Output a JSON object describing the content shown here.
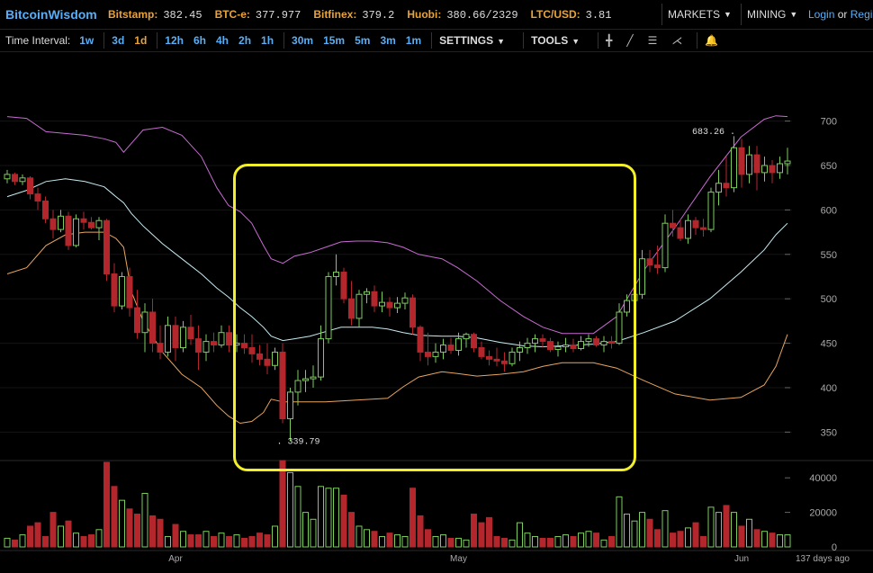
{
  "brand": "BitcoinWisdom",
  "tickers": [
    {
      "exchange": "Bitstamp:",
      "value": "382.45"
    },
    {
      "exchange": "BTC-e:",
      "value": "377.977"
    },
    {
      "exchange": "Bitfinex:",
      "value": "379.2"
    },
    {
      "exchange": "Huobi:",
      "value": "380.66/2329"
    },
    {
      "exchange": "LTC/USD:",
      "value": "3.81"
    }
  ],
  "menus": {
    "markets": "MARKETS",
    "mining": "MINING"
  },
  "login": {
    "login_label": "Login",
    "or": "or",
    "register_label": "Regi"
  },
  "toolbar": {
    "time_interval_label": "Time Interval:",
    "intervals": [
      "1w",
      "3d",
      "1d",
      "12h",
      "6h",
      "4h",
      "2h",
      "1h",
      "30m",
      "15m",
      "5m",
      "3m",
      "1m"
    ],
    "active_interval": "1d",
    "settings_label": "SETTINGS",
    "tools_label": "TOOLS"
  },
  "colors": {
    "up": "#7dcc5e",
    "down": "#b3262b",
    "bb_upper": "#c66bd0",
    "bb_mid": "#c7ecf3",
    "bb_lower": "#e8a560",
    "highlight": "#f2ef2a",
    "axis_text": "#aaaaaa"
  },
  "chart_data": {
    "type": "candlestick",
    "price_axis": {
      "ticks": [
        350,
        400,
        450,
        500,
        550,
        600,
        650,
        700
      ],
      "ylim": [
        320,
        735
      ]
    },
    "volume_axis": {
      "ticks": [
        0,
        20000,
        40000
      ],
      "ylim": [
        0,
        50000
      ]
    },
    "x_labels": [
      {
        "label": "Apr",
        "index": 22
      },
      {
        "label": "May",
        "index": 59
      },
      {
        "label": "Jun",
        "index": 96
      }
    ],
    "days_label": "137 days ago",
    "high_annotation": {
      "label": "683.26",
      "index": 96,
      "value": 683.26
    },
    "low_annotation": {
      "label": "339.79",
      "index": 35,
      "value": 339.79
    },
    "candles": [
      [
        635,
        645,
        630,
        640
      ],
      [
        640,
        642,
        628,
        632
      ],
      [
        632,
        640,
        628,
        636
      ],
      [
        636,
        638,
        612,
        618
      ],
      [
        618,
        625,
        600,
        610
      ],
      [
        610,
        615,
        585,
        590
      ],
      [
        590,
        600,
        568,
        578
      ],
      [
        578,
        600,
        575,
        593
      ],
      [
        593,
        598,
        555,
        560
      ],
      [
        560,
        595,
        558,
        590
      ],
      [
        590,
        598,
        578,
        586
      ],
      [
        586,
        592,
        578,
        580
      ],
      [
        580,
        592,
        566,
        588
      ],
      [
        588,
        590,
        520,
        528
      ],
      [
        528,
        540,
        485,
        492
      ],
      [
        492,
        530,
        488,
        525
      ],
      [
        525,
        535,
        480,
        490
      ],
      [
        490,
        510,
        455,
        462
      ],
      [
        462,
        495,
        440,
        485
      ],
      [
        485,
        500,
        440,
        450
      ],
      [
        450,
        470,
        432,
        440
      ],
      [
        440,
        480,
        435,
        470
      ],
      [
        470,
        480,
        430,
        445
      ],
      [
        445,
        475,
        440,
        468
      ],
      [
        468,
        482,
        448,
        455
      ],
      [
        455,
        470,
        420,
        440
      ],
      [
        440,
        460,
        430,
        452
      ],
      [
        452,
        462,
        440,
        448
      ],
      [
        448,
        470,
        445,
        462
      ],
      [
        462,
        470,
        440,
        448
      ],
      [
        448,
        460,
        440,
        450
      ],
      [
        450,
        460,
        438,
        445
      ],
      [
        445,
        460,
        428,
        438
      ],
      [
        438,
        448,
        425,
        432
      ],
      [
        432,
        450,
        415,
        425
      ],
      [
        425,
        445,
        420,
        440
      ],
      [
        440,
        450,
        360,
        365
      ],
      [
        365,
        400,
        340,
        395
      ],
      [
        395,
        420,
        380,
        408
      ],
      [
        408,
        420,
        395,
        410
      ],
      [
        410,
        425,
        400,
        412
      ],
      [
        412,
        470,
        408,
        455
      ],
      [
        455,
        530,
        450,
        525
      ],
      [
        525,
        550,
        515,
        530
      ],
      [
        530,
        535,
        495,
        500
      ],
      [
        500,
        520,
        470,
        478
      ],
      [
        478,
        510,
        468,
        505
      ],
      [
        505,
        512,
        495,
        508
      ],
      [
        508,
        515,
        485,
        492
      ],
      [
        492,
        508,
        485,
        496
      ],
      [
        496,
        502,
        480,
        490
      ],
      [
        490,
        502,
        484,
        495
      ],
      [
        495,
        507,
        488,
        501
      ],
      [
        501,
        505,
        460,
        468
      ],
      [
        468,
        470,
        430,
        440
      ],
      [
        440,
        462,
        425,
        435
      ],
      [
        435,
        450,
        428,
        440
      ],
      [
        440,
        455,
        432,
        448
      ],
      [
        448,
        456,
        438,
        442
      ],
      [
        442,
        462,
        436,
        455
      ],
      [
        455,
        462,
        445,
        460
      ],
      [
        460,
        462,
        440,
        445
      ],
      [
        445,
        452,
        432,
        435
      ],
      [
        435,
        442,
        425,
        432
      ],
      [
        432,
        445,
        424,
        430
      ],
      [
        430,
        440,
        418,
        427
      ],
      [
        427,
        445,
        424,
        440
      ],
      [
        440,
        452,
        430,
        445
      ],
      [
        445,
        456,
        438,
        450
      ],
      [
        450,
        460,
        440,
        455
      ],
      [
        455,
        460,
        445,
        452
      ],
      [
        452,
        456,
        440,
        443
      ],
      [
        443,
        452,
        435,
        446
      ],
      [
        446,
        456,
        440,
        448
      ],
      [
        448,
        455,
        440,
        444
      ],
      [
        444,
        458,
        442,
        452
      ],
      [
        452,
        460,
        446,
        455
      ],
      [
        455,
        458,
        446,
        448
      ],
      [
        448,
        458,
        440,
        452
      ],
      [
        452,
        458,
        444,
        450
      ],
      [
        450,
        495,
        448,
        485
      ],
      [
        485,
        505,
        480,
        498
      ],
      [
        498,
        512,
        488,
        505
      ],
      [
        505,
        555,
        500,
        545
      ],
      [
        545,
        555,
        530,
        538
      ],
      [
        538,
        560,
        528,
        535
      ],
      [
        535,
        595,
        530,
        585
      ],
      [
        585,
        600,
        570,
        580
      ],
      [
        580,
        590,
        565,
        568
      ],
      [
        568,
        595,
        562,
        588
      ],
      [
        588,
        592,
        572,
        580
      ],
      [
        580,
        590,
        570,
        578
      ],
      [
        578,
        625,
        575,
        620
      ],
      [
        620,
        645,
        605,
        630
      ],
      [
        630,
        660,
        615,
        625
      ],
      [
        625,
        683,
        620,
        670
      ],
      [
        670,
        680,
        625,
        640
      ],
      [
        640,
        672,
        630,
        662
      ],
      [
        662,
        672,
        622,
        642
      ],
      [
        642,
        660,
        632,
        650
      ],
      [
        650,
        656,
        630,
        642
      ],
      [
        642,
        660,
        635,
        652
      ],
      [
        652,
        670,
        640,
        655
      ]
    ],
    "volumes": [
      5000,
      4000,
      7000,
      12000,
      14000,
      6000,
      20000,
      12000,
      15000,
      8000,
      6000,
      7000,
      10000,
      49000,
      35000,
      27000,
      22000,
      19000,
      31000,
      18000,
      16000,
      6000,
      13000,
      9000,
      7000,
      7000,
      9000,
      6000,
      8000,
      6000,
      7000,
      5000,
      6000,
      8000,
      7000,
      12000,
      50000,
      43000,
      35000,
      20000,
      16000,
      35000,
      34000,
      34000,
      30000,
      20000,
      12000,
      10000,
      9000,
      6000,
      8000,
      7000,
      6000,
      34000,
      18000,
      10000,
      6000,
      7000,
      5000,
      5000,
      4000,
      19000,
      14000,
      17000,
      6000,
      5000,
      4000,
      14000,
      8000,
      6000,
      5000,
      5000,
      6000,
      7000,
      6000,
      8000,
      9000,
      8000,
      4000,
      6000,
      29000,
      19000,
      15000,
      20000,
      16000,
      10000,
      21000,
      8000,
      9000,
      11000,
      14000,
      6000,
      23000,
      20000,
      24000,
      20000,
      12000,
      16000,
      10000,
      9000,
      8000,
      7000,
      7000
    ],
    "bollinger": {
      "upper": [
        [
          0,
          705
        ],
        [
          5,
          703
        ],
        [
          10,
          688
        ],
        [
          15,
          686
        ],
        [
          20,
          684
        ],
        [
          25,
          680
        ],
        [
          28,
          676
        ],
        [
          30,
          665
        ],
        [
          32,
          675
        ],
        [
          35,
          690
        ],
        [
          40,
          693
        ],
        [
          45,
          684
        ],
        [
          50,
          660
        ],
        [
          54,
          625
        ],
        [
          57,
          605
        ],
        [
          60,
          598
        ],
        [
          63,
          585
        ],
        [
          66,
          560
        ],
        [
          68,
          545
        ],
        [
          71,
          540
        ],
        [
          74,
          548
        ],
        [
          78,
          552
        ],
        [
          82,
          558
        ],
        [
          86,
          564
        ],
        [
          90,
          565
        ],
        [
          94,
          565
        ],
        [
          98,
          563
        ],
        [
          102,
          558
        ],
        [
          106,
          550
        ],
        [
          112,
          545
        ],
        [
          116,
          535
        ],
        [
          121,
          520
        ],
        [
          127,
          498
        ],
        [
          133,
          480
        ],
        [
          138,
          468
        ],
        [
          143,
          461
        ],
        [
          151,
          461
        ],
        [
          157,
          480
        ],
        [
          164,
          532
        ],
        [
          172,
          580
        ],
        [
          181,
          637
        ],
        [
          189,
          682
        ],
        [
          195,
          702
        ],
        [
          198,
          706
        ],
        [
          201,
          705
        ]
      ],
      "middle": [
        [
          0,
          615
        ],
        [
          5,
          622
        ],
        [
          10,
          632
        ],
        [
          15,
          635
        ],
        [
          20,
          632
        ],
        [
          25,
          626
        ],
        [
          28,
          615
        ],
        [
          30,
          608
        ],
        [
          32,
          596
        ],
        [
          35,
          582
        ],
        [
          40,
          562
        ],
        [
          45,
          545
        ],
        [
          50,
          528
        ],
        [
          54,
          512
        ],
        [
          57,
          502
        ],
        [
          60,
          490
        ],
        [
          63,
          480
        ],
        [
          66,
          468
        ],
        [
          68,
          458
        ],
        [
          71,
          453
        ],
        [
          74,
          455
        ],
        [
          78,
          458
        ],
        [
          82,
          463
        ],
        [
          86,
          468
        ],
        [
          90,
          468
        ],
        [
          94,
          468
        ],
        [
          98,
          466
        ],
        [
          102,
          462
        ],
        [
          106,
          459
        ],
        [
          112,
          458
        ],
        [
          116,
          458
        ],
        [
          121,
          456
        ],
        [
          127,
          451
        ],
        [
          133,
          447
        ],
        [
          138,
          446
        ],
        [
          143,
          447
        ],
        [
          151,
          449
        ],
        [
          157,
          452
        ],
        [
          164,
          462
        ],
        [
          172,
          475
        ],
        [
          181,
          500
        ],
        [
          189,
          530
        ],
        [
          195,
          555
        ],
        [
          198,
          572
        ],
        [
          201,
          585
        ]
      ],
      "lower": [
        [
          0,
          528
        ],
        [
          5,
          535
        ],
        [
          10,
          560
        ],
        [
          15,
          572
        ],
        [
          20,
          575
        ],
        [
          25,
          575
        ],
        [
          28,
          568
        ],
        [
          30,
          558
        ],
        [
          32,
          508
        ],
        [
          35,
          475
        ],
        [
          40,
          440
        ],
        [
          45,
          415
        ],
        [
          50,
          400
        ],
        [
          54,
          380
        ],
        [
          57,
          368
        ],
        [
          60,
          360
        ],
        [
          63,
          362
        ],
        [
          66,
          372
        ],
        [
          68,
          387
        ],
        [
          71,
          384
        ],
        [
          74,
          384
        ],
        [
          78,
          384
        ],
        [
          82,
          384
        ],
        [
          86,
          385
        ],
        [
          90,
          386
        ],
        [
          94,
          387
        ],
        [
          98,
          388
        ],
        [
          102,
          401
        ],
        [
          106,
          412
        ],
        [
          112,
          418
        ],
        [
          116,
          416
        ],
        [
          121,
          413
        ],
        [
          127,
          415
        ],
        [
          133,
          418
        ],
        [
          138,
          424
        ],
        [
          143,
          428
        ],
        [
          151,
          428
        ],
        [
          157,
          422
        ],
        [
          164,
          408
        ],
        [
          172,
          393
        ],
        [
          181,
          386
        ],
        [
          189,
          389
        ],
        [
          195,
          403
        ],
        [
          198,
          424
        ],
        [
          201,
          460
        ]
      ]
    }
  }
}
